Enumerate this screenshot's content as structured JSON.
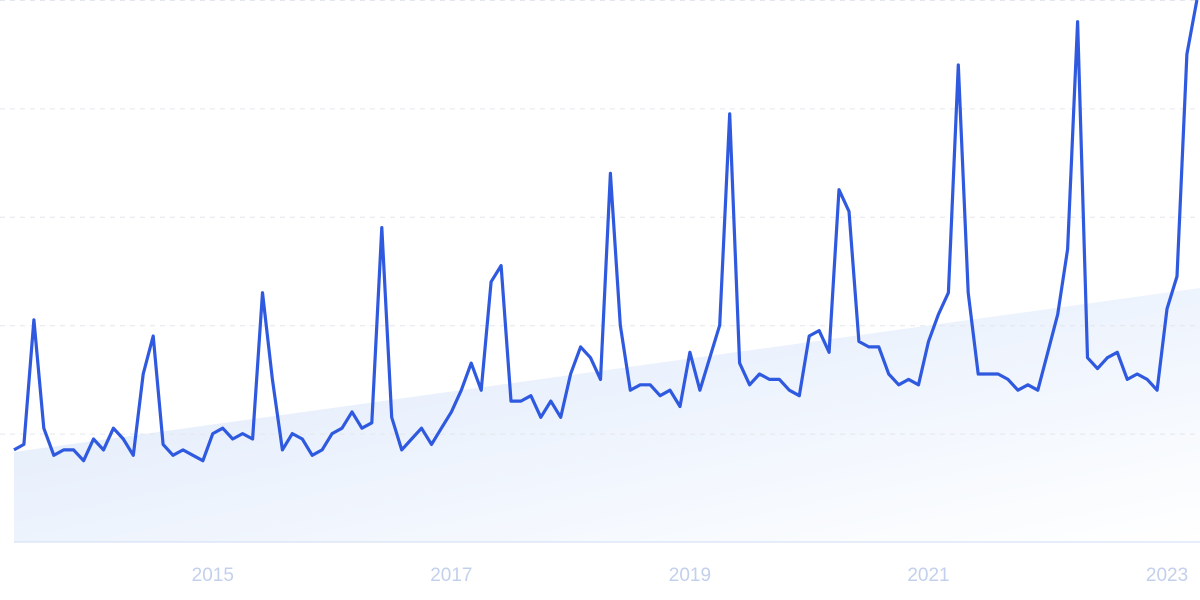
{
  "chart_data": {
    "type": "line",
    "categories": [
      null,
      null,
      null,
      null,
      null,
      null,
      null,
      null,
      null,
      null,
      null,
      null,
      null,
      null,
      null,
      null,
      null,
      null,
      null,
      null,
      "2015",
      null,
      null,
      null,
      null,
      null,
      null,
      null,
      null,
      null,
      null,
      null,
      null,
      null,
      null,
      null,
      null,
      null,
      null,
      null,
      null,
      null,
      null,
      null,
      "2017",
      null,
      null,
      null,
      null,
      null,
      null,
      null,
      null,
      null,
      null,
      null,
      null,
      null,
      null,
      null,
      null,
      null,
      null,
      null,
      null,
      null,
      null,
      null,
      "2019",
      null,
      null,
      null,
      null,
      null,
      null,
      null,
      null,
      null,
      null,
      null,
      null,
      null,
      null,
      null,
      null,
      null,
      null,
      null,
      null,
      null,
      null,
      null,
      "2021",
      null,
      null,
      null,
      null,
      null,
      null,
      null,
      null,
      null,
      null,
      null,
      null,
      null,
      null,
      null,
      null,
      null,
      null,
      null,
      null,
      null,
      null,
      null,
      "2023",
      null,
      null,
      null
    ],
    "series": [
      {
        "color": "#2f5ae0",
        "values": [
          17,
          18,
          41,
          21,
          16,
          17,
          17,
          15,
          19,
          17,
          21,
          19,
          16,
          31,
          38,
          18,
          16,
          17,
          16,
          15,
          20,
          21,
          19,
          20,
          19,
          46,
          30,
          17,
          20,
          19,
          16,
          17,
          20,
          21,
          24,
          21,
          22,
          58,
          23,
          17,
          19,
          21,
          18,
          21,
          24,
          28,
          33,
          28,
          48,
          51,
          26,
          26,
          27,
          23,
          26,
          23,
          31,
          36,
          34,
          30,
          68,
          40,
          28,
          29,
          29,
          27,
          28,
          25,
          35,
          28,
          34,
          40,
          79,
          33,
          29,
          31,
          30,
          30,
          28,
          27,
          38,
          39,
          35,
          65,
          61,
          37,
          36,
          36,
          31,
          29,
          30,
          29,
          37,
          42,
          46,
          88,
          46,
          31,
          31,
          31,
          30,
          28,
          29,
          28,
          35,
          42,
          54,
          96,
          34,
          32,
          34,
          35,
          30,
          31,
          30,
          28,
          43,
          49,
          90,
          100
        ]
      }
    ],
    "ylim": [
      0,
      100
    ],
    "yticks": [
      20,
      40,
      60,
      80,
      100
    ],
    "grid": true
  }
}
